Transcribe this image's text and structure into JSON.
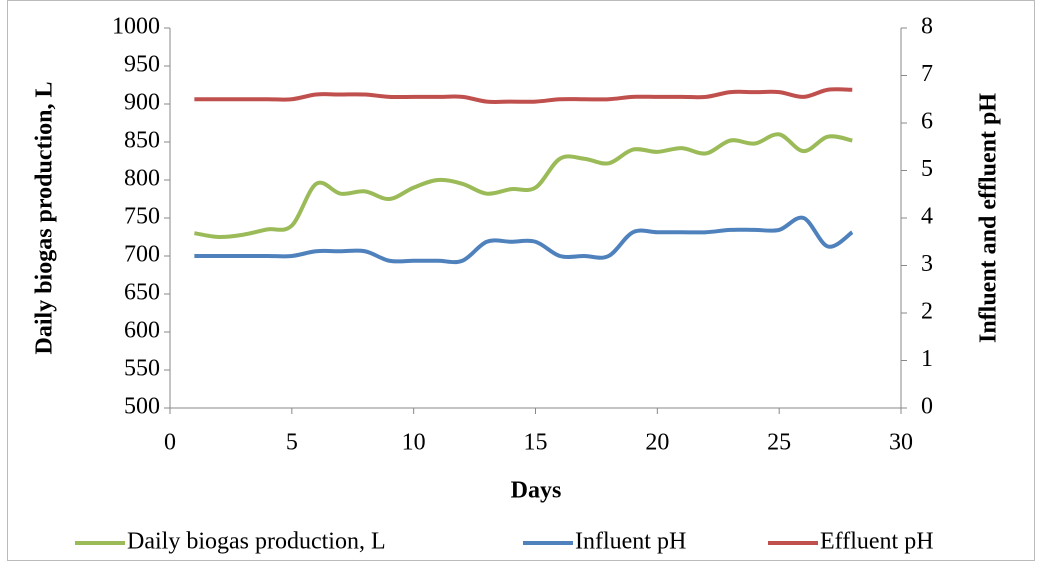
{
  "chart_data": {
    "type": "line",
    "x_label": "Days",
    "y_label": "Daily biogas production, L",
    "y2_label": "Influent and effluent pH",
    "x": [
      1,
      2,
      3,
      4,
      5,
      6,
      7,
      8,
      9,
      10,
      11,
      12,
      13,
      14,
      15,
      16,
      17,
      18,
      19,
      20,
      21,
      22,
      23,
      24,
      25,
      26,
      27,
      28
    ],
    "series": [
      {
        "name": "Daily biogas production, L",
        "color": "#9bbb59",
        "axis": "y",
        "values": [
          730,
          725,
          728,
          735,
          740,
          795,
          782,
          785,
          775,
          790,
          800,
          795,
          782,
          788,
          790,
          828,
          828,
          822,
          840,
          837,
          842,
          835,
          852,
          848,
          860,
          838,
          857,
          852
        ]
      },
      {
        "name": "Influent pH",
        "color": "#4f81bd",
        "axis": "y2",
        "values": [
          3.2,
          3.2,
          3.2,
          3.2,
          3.2,
          3.3,
          3.3,
          3.3,
          3.1,
          3.1,
          3.1,
          3.1,
          3.5,
          3.5,
          3.5,
          3.2,
          3.2,
          3.2,
          3.7,
          3.7,
          3.7,
          3.7,
          3.75,
          3.75,
          3.75,
          4.0,
          3.4,
          3.7
        ]
      },
      {
        "name": "Effluent pH",
        "color": "#c0504d",
        "axis": "y2",
        "values": [
          6.5,
          6.5,
          6.5,
          6.5,
          6.5,
          6.6,
          6.6,
          6.6,
          6.55,
          6.55,
          6.55,
          6.55,
          6.45,
          6.45,
          6.45,
          6.5,
          6.5,
          6.5,
          6.55,
          6.55,
          6.55,
          6.55,
          6.65,
          6.65,
          6.65,
          6.55,
          6.7,
          6.7
        ]
      }
    ],
    "xlim": [
      0,
      30
    ],
    "xticks": [
      0,
      5,
      10,
      15,
      20,
      25,
      30
    ],
    "ylim": [
      500,
      1000
    ],
    "yticks": [
      500,
      550,
      600,
      650,
      700,
      750,
      800,
      850,
      900,
      950,
      1000
    ],
    "y2lim": [
      0,
      8
    ],
    "y2ticks": [
      0,
      1,
      2,
      3,
      4,
      5,
      6,
      7,
      8
    ],
    "legend": "bottom"
  }
}
